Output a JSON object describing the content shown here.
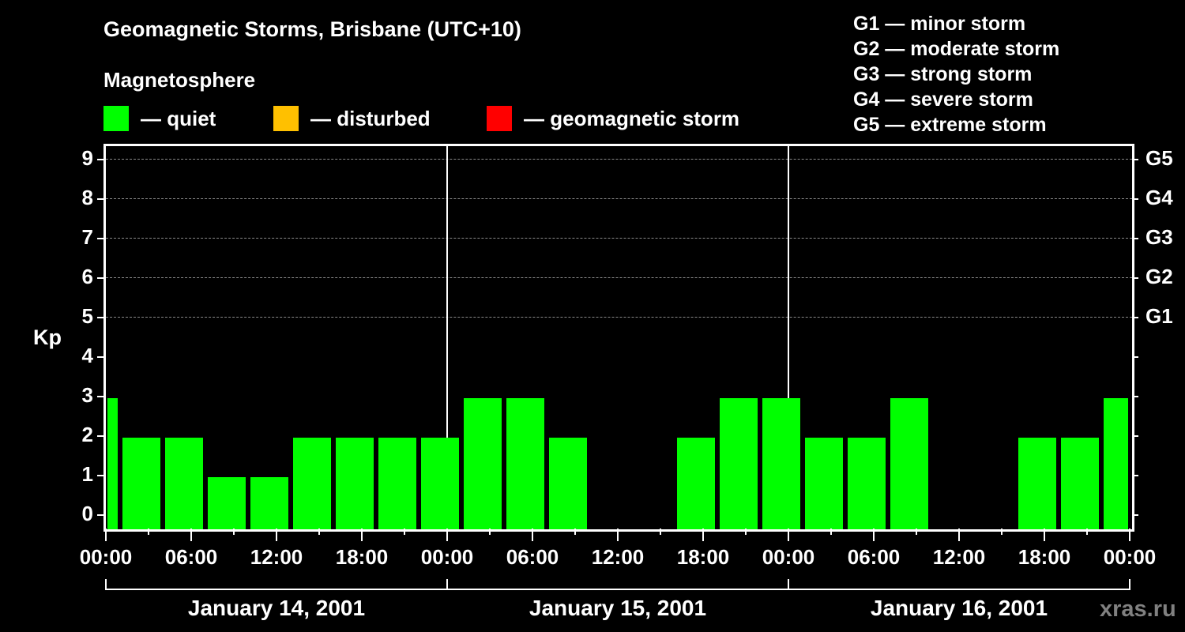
{
  "header": {
    "title": "Geomagnetic Storms, Brisbane (UTC+10)",
    "subtitle": "Magnetosphere"
  },
  "legend": [
    {
      "label": "— quiet",
      "color": "#00ff00"
    },
    {
      "label": "— disturbed",
      "color": "#ffc000"
    },
    {
      "label": "— geomagnetic storm",
      "color": "#ff0000"
    }
  ],
  "g_scale": [
    "G1 — minor storm",
    "G2 — moderate storm",
    "G3 — strong storm",
    "G4 — severe storm",
    "G5 — extreme storm"
  ],
  "axis": {
    "ylabel": "Kp",
    "yticks": [
      "0",
      "1",
      "2",
      "3",
      "4",
      "5",
      "6",
      "7",
      "8",
      "9"
    ],
    "right_ticks": {
      "5": "G1",
      "6": "G2",
      "7": "G3",
      "8": "G4",
      "9": "G5"
    },
    "xticks": [
      "00:00",
      "06:00",
      "12:00",
      "18:00",
      "00:00",
      "06:00",
      "12:00",
      "18:00",
      "00:00",
      "06:00",
      "12:00",
      "18:00",
      "00:00"
    ],
    "days": [
      "January 14, 2001",
      "January 15, 2001",
      "January 16, 2001"
    ]
  },
  "watermark": "xras.ru",
  "chart_data": {
    "type": "bar",
    "title": "Geomagnetic Storms, Brisbane (UTC+10)",
    "xlabel": "",
    "ylabel": "Kp",
    "ylim": [
      0,
      9
    ],
    "grid": true,
    "categories": [
      "Jan14 00:00-01:00",
      "Jan14 01:00",
      "Jan14 04:00",
      "Jan14 07:00",
      "Jan14 10:00",
      "Jan14 13:00",
      "Jan14 16:00",
      "Jan14 19:00",
      "Jan14 22:00",
      "Jan15 01:00",
      "Jan15 04:00",
      "Jan15 07:00",
      "Jan15 10:00",
      "Jan15 13:00",
      "Jan15 16:00",
      "Jan15 19:00",
      "Jan15 22:00",
      "Jan16 01:00",
      "Jan16 04:00",
      "Jan16 07:00",
      "Jan16 10:00",
      "Jan16 13:00",
      "Jan16 16:00",
      "Jan16 19:00",
      "Jan16 22:00-24:00"
    ],
    "values": [
      3,
      2,
      2,
      1,
      1,
      2,
      2,
      2,
      2,
      3,
      3,
      2,
      0,
      0,
      2,
      3,
      3,
      2,
      2,
      3,
      0,
      0,
      2,
      2,
      3
    ],
    "bar_status": "quiet",
    "legend": [
      "quiet",
      "disturbed",
      "geomagnetic storm"
    ],
    "right_axis_labels": [
      "G1",
      "G2",
      "G3",
      "G4",
      "G5"
    ]
  }
}
